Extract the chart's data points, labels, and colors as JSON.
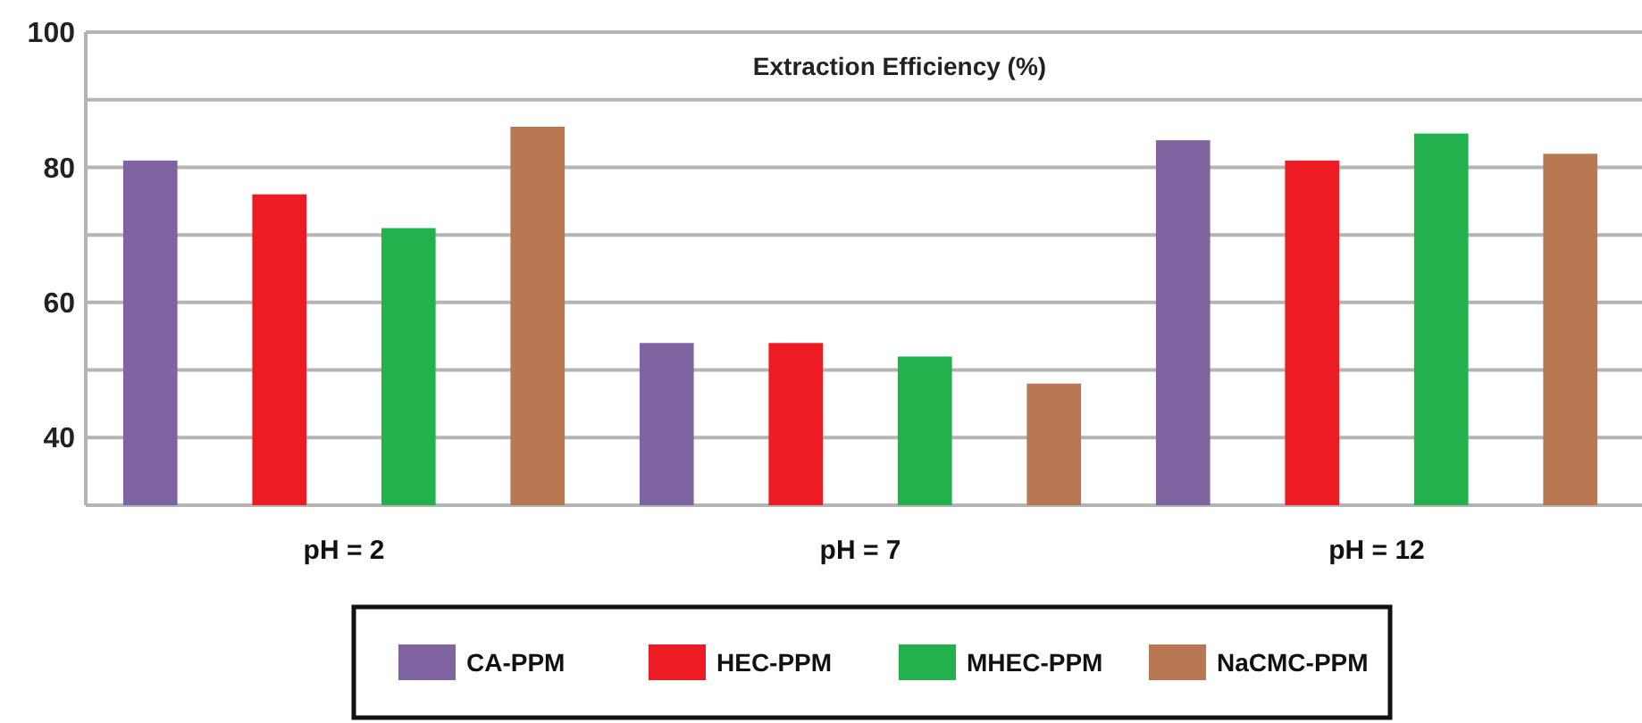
{
  "chart_data": {
    "type": "bar",
    "title": "Extraction Efficiency (%)",
    "categories": [
      "pH = 2",
      "pH = 7",
      "pH = 12"
    ],
    "series": [
      {
        "name": "CA-PPM",
        "color": "#8064a2",
        "values": [
          81,
          54,
          84
        ]
      },
      {
        "name": "HEC-PPM",
        "color": "#ed1c24",
        "values": [
          76,
          54,
          81
        ]
      },
      {
        "name": "MHEC-PPM",
        "color": "#22b14c",
        "values": [
          71,
          52,
          85
        ]
      },
      {
        "name": "NaCMC-PPM",
        "color": "#b87952",
        "values": [
          86,
          48,
          82
        ]
      }
    ],
    "ylim": [
      30,
      100
    ],
    "yticks": [
      40,
      {
        "value": 50,
        "label": null
      },
      60,
      {
        "value": 70,
        "label": null
      },
      80,
      {
        "value": 90,
        "label": null
      },
      100
    ],
    "grid": "y",
    "legend": "bottom"
  }
}
